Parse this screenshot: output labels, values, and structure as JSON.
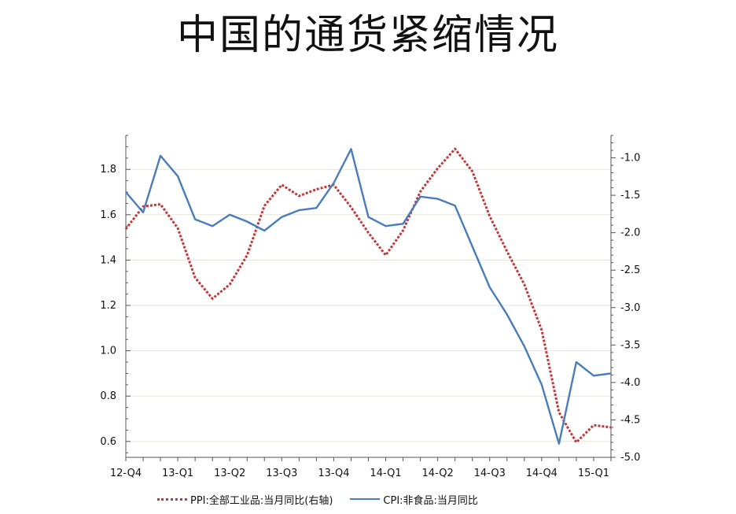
{
  "chart_data": {
    "type": "line",
    "title": "中国的通货紧缩情况",
    "x": [
      "12-Q4",
      "",
      "",
      "13-Q1",
      "",
      "",
      "13-Q2",
      "",
      "",
      "13-Q3",
      "",
      "",
      "13-Q4",
      "",
      "",
      "14-Q1",
      "",
      "",
      "14-Q2",
      "",
      "",
      "14-Q3",
      "",
      "",
      "14-Q4",
      "",
      "",
      "15-Q1",
      ""
    ],
    "x_tick_labels": [
      "12-Q4",
      "13-Q1",
      "13-Q2",
      "13-Q3",
      "13-Q4",
      "14-Q1",
      "14-Q2",
      "14-Q3",
      "14-Q4",
      "15-Q1"
    ],
    "y_left": {
      "ticks": [
        "0.6",
        "0.8",
        "1.0",
        "1.2",
        "1.4",
        "1.6",
        "1.8"
      ],
      "ylim": [
        0.53,
        1.95
      ]
    },
    "y_right": {
      "ticks": [
        "-1.0",
        "-1.5",
        "-2.0",
        "-2.5",
        "-3.0",
        "-3.5",
        "-4.0",
        "-4.5",
        "-5.0"
      ],
      "ylim": [
        -5.0,
        -0.7
      ]
    },
    "series": [
      {
        "name": "PPI:全部工业品:当月同比(右轴)",
        "axis": "right",
        "color": "#c0393b",
        "style": "dotted",
        "values": [
          -1.95,
          -1.65,
          -1.62,
          -1.94,
          -2.6,
          -2.88,
          -2.69,
          -2.3,
          -1.64,
          -1.36,
          -1.51,
          -1.42,
          -1.36,
          -1.66,
          -2.0,
          -2.3,
          -1.97,
          -1.45,
          -1.14,
          -0.88,
          -1.18,
          -1.78,
          -2.25,
          -2.69,
          -3.3,
          -4.4,
          -4.8,
          -4.57,
          -4.6
        ]
      },
      {
        "name": "CPI:非食品:当月同比",
        "axis": "left",
        "color": "#4a7cba",
        "style": "solid",
        "values": [
          1.7,
          1.61,
          1.86,
          1.77,
          1.58,
          1.55,
          1.6,
          1.57,
          1.53,
          1.59,
          1.62,
          1.63,
          1.74,
          1.89,
          1.59,
          1.55,
          1.56,
          1.68,
          1.67,
          1.64,
          1.46,
          1.28,
          1.16,
          1.02,
          0.85,
          0.59,
          0.95,
          0.89,
          0.9
        ]
      }
    ],
    "legend_position": "bottom",
    "grid": "horizontal"
  }
}
